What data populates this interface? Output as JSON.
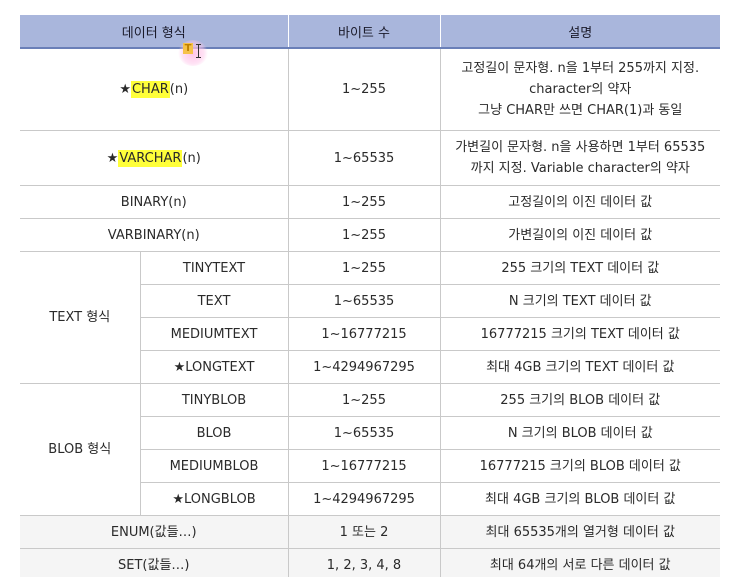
{
  "headers": [
    "데이터 형식",
    "바이트 수",
    "설명"
  ],
  "rows": {
    "char": {
      "star": "★",
      "name": "CHAR",
      "suffix": "(n)",
      "bytes": "1~255",
      "desc": [
        "고정길이 문자형. n을 1부터 255까지 지정.",
        "character의 약자",
        "그냥 CHAR만 쓰면 CHAR(1)과 동일"
      ]
    },
    "varchar": {
      "star": "★",
      "name": "VARCHAR",
      "suffix": "(n)",
      "bytes": "1~65535",
      "desc": [
        "가변길이 문자형. n을 사용하면 1부터 65535",
        "까지 지정. Variable character의 약자"
      ]
    },
    "binary": {
      "name": "BINARY(n)",
      "bytes": "1~255",
      "desc": "고정길이의 이진 데이터 값"
    },
    "varbinary": {
      "name": "VARBINARY(n)",
      "bytes": "1~255",
      "desc": "가변길이의 이진 데이터 값"
    }
  },
  "text_group": {
    "label": "TEXT 형식",
    "items": [
      {
        "name": "TINYTEXT",
        "bytes": "1~255",
        "desc": "255 크기의 TEXT 데이터 값"
      },
      {
        "name": "TEXT",
        "bytes": "1~65535",
        "desc": "N 크기의 TEXT 데이터 값"
      },
      {
        "name": "MEDIUMTEXT",
        "bytes": "1~16777215",
        "desc": "16777215 크기의 TEXT 데이터 값"
      },
      {
        "name": "★LONGTEXT",
        "bytes": "1~4294967295",
        "desc": "최대 4GB 크기의 TEXT 데이터 값"
      }
    ]
  },
  "blob_group": {
    "label": "BLOB 형식",
    "items": [
      {
        "name": "TINYBLOB",
        "bytes": "1~255",
        "desc": "255 크기의 BLOB 데이터 값"
      },
      {
        "name": "BLOB",
        "bytes": "1~65535",
        "desc": "N 크기의 BLOB 데이터 값"
      },
      {
        "name": "MEDIUMBLOB",
        "bytes": "1~16777215",
        "desc": "16777215 크기의 BLOB 데이터 값"
      },
      {
        "name": "★LONGBLOB",
        "bytes": "1~4294967295",
        "desc": "최대 4GB 크기의 BLOB 데이터 값"
      }
    ]
  },
  "enum": {
    "name": "ENUM(값들…)",
    "bytes": "1 또는 2",
    "desc": "최대 65535개의 열거형 데이터 값"
  },
  "set": {
    "name": "SET(값들…)",
    "bytes": "1, 2, 3, 4, 8",
    "desc": "최대 64개의 서로 다른 데이터 값"
  },
  "cursor": {
    "badge": "T"
  },
  "colors": {
    "header_bg": "#a9b6dc",
    "highlight": "#ffff3a",
    "row_shade": "#f5f5f5"
  }
}
